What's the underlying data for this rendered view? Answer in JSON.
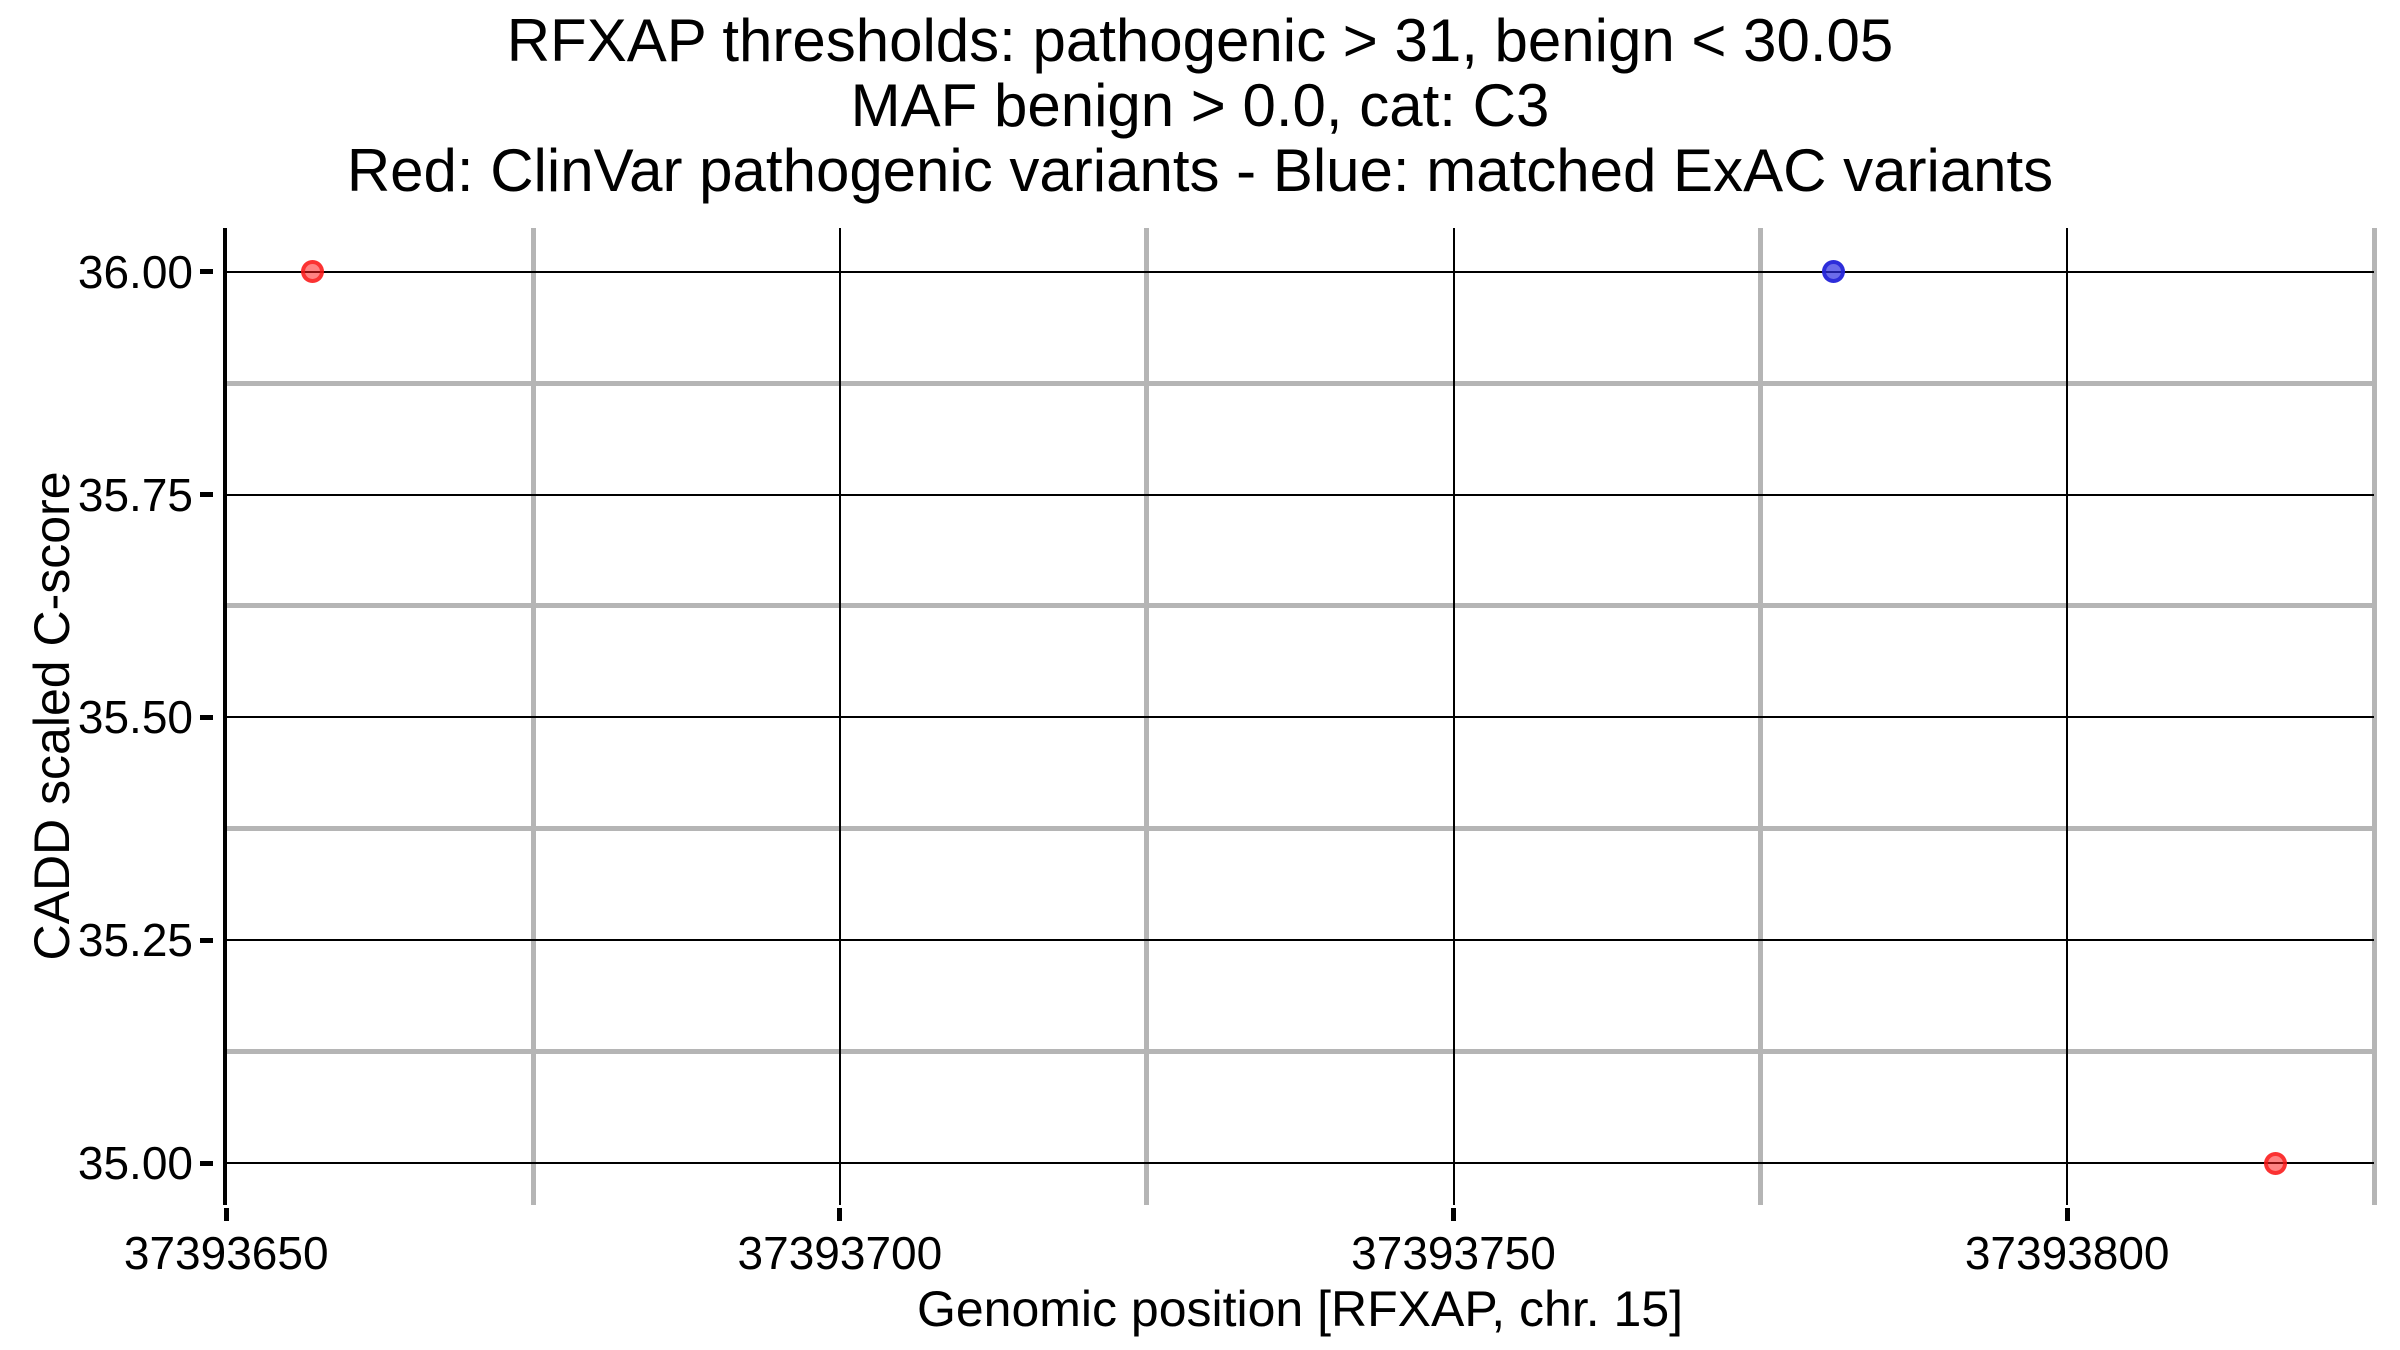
{
  "title": {
    "lines": [
      "RFXAP thresholds: pathogenic > 31, benign < 30.05",
      "MAF benign > 0.0, cat: C3",
      "Red: ClinVar pathogenic variants - Blue: matched ExAC variants"
    ]
  },
  "chart_data": {
    "type": "scatter",
    "title": "RFXAP thresholds: pathogenic > 31, benign < 30.05 | MAF benign > 0.0, cat: C3 | Red: ClinVar pathogenic variants - Blue: matched ExAC variants",
    "xlabel": "Genomic position [RFXAP, chr. 15]",
    "ylabel": "CADD scaled C-score",
    "xlim": [
      37393649.9,
      37393825.0
    ],
    "ylim": [
      34.953,
      36.049
    ],
    "x_ticks": [
      37393650,
      37393700,
      37393750,
      37393800
    ],
    "x_tick_labels": [
      "37393650",
      "37393700",
      "37393750",
      "37393800"
    ],
    "y_ticks": [
      35.0,
      35.25,
      35.5,
      35.75,
      36.0
    ],
    "y_tick_labels": [
      "35.00",
      "35.25",
      "35.50",
      "35.75",
      "36.00"
    ],
    "x_minor_ticks": [
      37393675,
      37393725,
      37393775,
      37393825
    ],
    "y_minor_ticks": [
      35.125,
      35.375,
      35.625,
      35.875
    ],
    "grid": {
      "major_color": "#000000",
      "minor_color": "#b5b5b5",
      "grid_on": true
    },
    "legend_position": "none",
    "series": [
      {
        "name": "ClinVar pathogenic variants",
        "slug": "clinvar-pathogenic",
        "fill": "rgba(255,30,30,0.55)",
        "edge": "rgba(250,20,20,0.72)",
        "points": [
          {
            "x": 37393657,
            "y": 36.0
          },
          {
            "x": 37393817,
            "y": 35.0
          }
        ]
      },
      {
        "name": "matched ExAC variants",
        "slug": "exac-matched",
        "fill": "rgba(45,45,225,0.70)",
        "edge": "rgba(35,35,215,0.85)",
        "points": [
          {
            "x": 37393781,
            "y": 36.0
          }
        ]
      }
    ]
  }
}
